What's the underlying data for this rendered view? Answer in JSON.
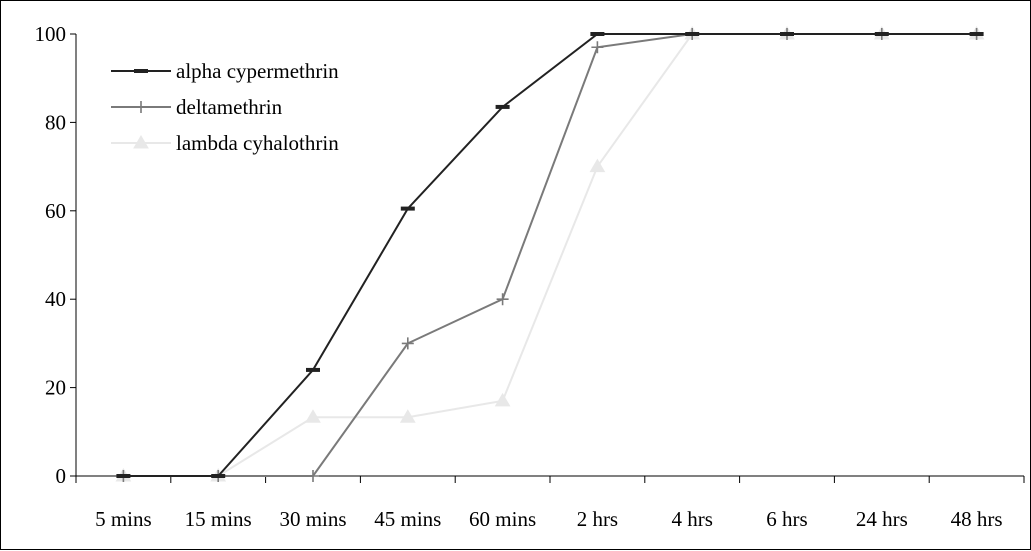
{
  "chart_data": {
    "type": "line",
    "categories": [
      "5 mins",
      "15 mins",
      "30 mins",
      "45 mins",
      "60 mins",
      "2 hrs",
      "4 hrs",
      "6 hrs",
      "24 hrs",
      "48 hrs"
    ],
    "ylim": [
      0,
      100
    ],
    "yticks": [
      0,
      20,
      40,
      60,
      80,
      100
    ],
    "grid": false,
    "legend_position": "top-left",
    "series": [
      {
        "name": "alpha cypermethrin",
        "color": "#222222",
        "marker": "dash",
        "values": [
          0,
          0,
          24,
          60.5,
          83.5,
          100,
          100,
          100,
          100,
          100
        ]
      },
      {
        "name": "deltamethrin",
        "color": "#7a7a7a",
        "marker": "plus",
        "values": [
          0,
          0,
          0,
          30,
          40,
          97,
          100,
          100,
          100,
          100
        ]
      },
      {
        "name": "lambda cyhalothrin",
        "color": "#e8e8e8",
        "marker": "triangle",
        "values": [
          0,
          0,
          13.3,
          13.3,
          17,
          70,
          100,
          100,
          100,
          100
        ]
      }
    ]
  }
}
